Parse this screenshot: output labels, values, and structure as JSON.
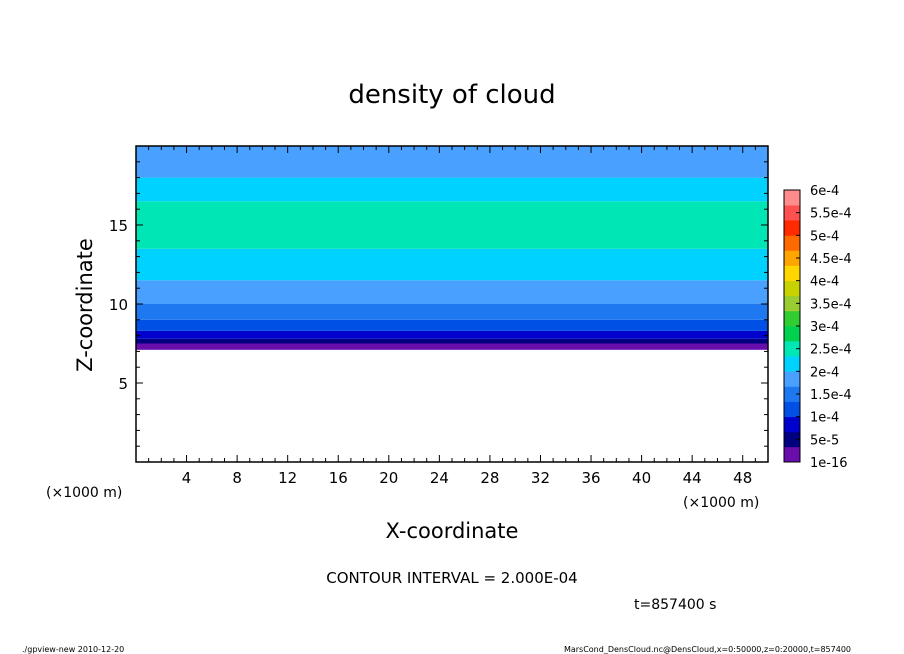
{
  "chart_data": {
    "type": "heatmap",
    "title": "density of cloud",
    "xlabel": "X-coordinate",
    "ylabel": "Z-coordinate",
    "x_unit": "(×1000 m)",
    "y_unit": "(×1000 m)",
    "xlim": [
      0,
      50
    ],
    "ylim": [
      0,
      20
    ],
    "x_ticks": [
      4,
      8,
      12,
      16,
      20,
      24,
      28,
      32,
      36,
      40,
      44,
      48
    ],
    "y_ticks": [
      5,
      10,
      15
    ],
    "cloud_base_z": 7.1,
    "profile": [
      {
        "z_top": 7.5,
        "level": 0
      },
      {
        "z_top": 7.8,
        "level": 1
      },
      {
        "z_top": 8.3,
        "level": 2
      },
      {
        "z_top": 9.0,
        "level": 3
      },
      {
        "z_top": 10.0,
        "level": 4
      },
      {
        "z_top": 11.5,
        "level": 5
      },
      {
        "z_top": 13.5,
        "level": 6
      },
      {
        "z_top": 16.5,
        "level": 7
      },
      {
        "z_top": 18.0,
        "level": 6
      },
      {
        "z_top": 20.0,
        "level": 5
      }
    ],
    "colorbar": {
      "labels": [
        "1e-16",
        "5e-5",
        "1e-4",
        "1.5e-4",
        "2e-4",
        "2.5e-4",
        "3e-4",
        "3.5e-4",
        "4e-4",
        "4.5e-4",
        "5e-4",
        "5.5e-4",
        "6e-4"
      ],
      "colors": [
        "#6a0dad",
        "#000080",
        "#0000cd",
        "#0050e6",
        "#1e78f0",
        "#4aa0ff",
        "#00d2ff",
        "#00e6b4",
        "#00d250",
        "#32cd32",
        "#9acd32",
        "#c8d200",
        "#ffd700",
        "#ffa500",
        "#ff6a00",
        "#ff2a00",
        "#ff5050",
        "#ff8c8c"
      ]
    },
    "contour_interval_text": "CONTOUR INTERVAL = 2.000E-04",
    "time_text": "t=857400 s"
  },
  "footer": {
    "left": "./gpview-new  2010-12-20",
    "right": "MarsCond_DensCloud.nc@DensCloud,x=0:50000,z=0:20000,t=857400"
  }
}
